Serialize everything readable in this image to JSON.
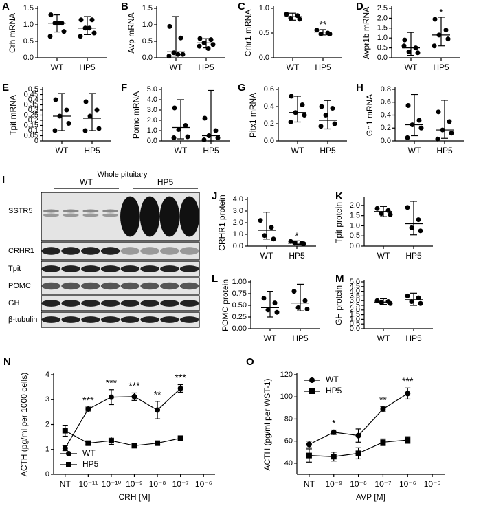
{
  "chart_data": [
    {
      "type": "dot",
      "panel": "A",
      "ylabel": "Crh mRNA",
      "color": "#000000",
      "categories": [
        "WT",
        "HP5"
      ],
      "ylim": [
        0,
        1.5
      ],
      "yticks": [
        {
          "value": 0,
          "label": "0.0"
        },
        0.5,
        {
          "value": 1,
          "label": "1.0"
        },
        1.5
      ],
      "groups": [
        {
          "values": [
            1.3,
            1.05,
            1.05,
            0.8,
            0.65,
            1.05
          ],
          "center": 1.05,
          "low": 0.78,
          "high": 1.3
        },
        {
          "values": [
            1.15,
            1.15,
            0.9,
            0.75,
            0.65,
            0.9
          ],
          "center": 0.9,
          "low": 0.7,
          "high": 1.25
        }
      ]
    },
    {
      "type": "dot",
      "panel": "B",
      "ylabel": "Avp mRNA",
      "color": "#000000",
      "categories": [
        "WT",
        "HP5"
      ],
      "ylim": [
        0,
        1.5
      ],
      "yticks": [
        {
          "value": 0,
          "label": "0.0"
        },
        0.5,
        {
          "value": 1,
          "label": "1.0"
        },
        1.5
      ],
      "groups": [
        {
          "values": [
            0.95,
            0.6,
            0.15,
            0.1,
            0.05,
            0.1
          ],
          "center": 0.18,
          "low": 0.05,
          "high": 1.25
        },
        {
          "values": [
            0.58,
            0.55,
            0.45,
            0.4,
            0.35,
            0.28
          ],
          "center": 0.45,
          "low": 0.3,
          "high": 0.58
        }
      ]
    },
    {
      "type": "dot",
      "panel": "C",
      "ylabel": "Crhr1 mRNA",
      "color": "#000000",
      "categories": [
        "WT",
        "HP5"
      ],
      "ylim": [
        0,
        1
      ],
      "yticks": [
        {
          "value": 0,
          "label": "0.0"
        },
        0.5,
        {
          "value": 1,
          "label": "1.0"
        }
      ],
      "groups": [
        {
          "values": [
            0.88,
            0.85,
            0.8,
            0.78
          ],
          "center": 0.83,
          "low": 0.76,
          "high": 0.9
        },
        {
          "values": [
            0.56,
            0.5,
            0.48,
            0.48
          ],
          "center": 0.52,
          "low": 0.46,
          "high": 0.57
        }
      ],
      "annotations": [
        null,
        "**"
      ]
    },
    {
      "type": "dot",
      "panel": "D",
      "ylabel": "Avpr1b mRNA",
      "color": "#000000",
      "categories": [
        "WT",
        "HP5"
      ],
      "ylim": [
        0,
        2.5
      ],
      "yticks": [
        {
          "value": 0,
          "label": "0.0"
        },
        0.5,
        {
          "value": 1,
          "label": "1.0"
        },
        1.5,
        {
          "value": 2,
          "label": "2.0"
        },
        2.5
      ],
      "groups": [
        {
          "values": [
            0.9,
            0.5,
            0.3,
            0.25,
            0.6
          ],
          "center": 0.5,
          "low": 0.12,
          "high": 1.28
        },
        {
          "values": [
            1.95,
            1.4,
            1.15,
            0.95,
            0.6
          ],
          "center": 1.15,
          "low": 0.6,
          "high": 2.05
        }
      ],
      "annotations": [
        null,
        "*"
      ]
    },
    {
      "type": "dot",
      "panel": "E",
      "ylabel": "Tpit mRNA",
      "color": "#000000",
      "categories": [
        "WT",
        "HP5"
      ],
      "ylim": [
        0,
        0.5
      ],
      "yticks": [
        0,
        0.05,
        0.1,
        0.15,
        0.2,
        0.25,
        0.3,
        0.35,
        0.4,
        0.45,
        0.5
      ],
      "groups": [
        {
          "values": [
            0.4,
            0.3,
            0.24,
            0.17,
            0.1
          ],
          "center": 0.24,
          "low": 0.1,
          "high": 0.46
        },
        {
          "values": [
            0.38,
            0.3,
            0.24,
            0.12,
            0.1
          ],
          "center": 0.22,
          "low": 0.1,
          "high": 0.46
        }
      ]
    },
    {
      "type": "dot",
      "panel": "F",
      "ylabel": "Pomc mRNA",
      "color": "#000000",
      "categories": [
        "WT",
        "HP5"
      ],
      "ylim": [
        0,
        5
      ],
      "yticks": [
        {
          "value": 0,
          "label": "0.0"
        },
        {
          "value": 1,
          "label": "1.0"
        },
        {
          "value": 2,
          "label": "2.0"
        },
        {
          "value": 3,
          "label": "3.0"
        },
        {
          "value": 4,
          "label": "4.0"
        },
        {
          "value": 5,
          "label": "5.0"
        }
      ],
      "groups": [
        {
          "values": [
            3.2,
            1.5,
            1.1,
            0.4,
            0.3
          ],
          "center": 1.3,
          "low": 0.2,
          "high": 4.0
        },
        {
          "values": [
            2.2,
            1.0,
            0.5,
            0.3,
            0.1
          ],
          "center": 0.5,
          "low": 0,
          "high": 4.9
        }
      ]
    },
    {
      "type": "dot",
      "panel": "G",
      "ylabel": "Pitx1 mRNA",
      "color": "#000000",
      "categories": [
        "WT",
        "HP5"
      ],
      "ylim": [
        0,
        0.6
      ],
      "yticks": [
        {
          "value": 0,
          "label": "0.0"
        },
        0.2,
        0.4,
        0.6
      ],
      "groups": [
        {
          "values": [
            0.52,
            0.42,
            0.33,
            0.3,
            0.22
          ],
          "center": 0.33,
          "low": 0.22,
          "high": 0.52
        },
        {
          "values": [
            0.4,
            0.38,
            0.3,
            0.2,
            0.17
          ],
          "center": 0.24,
          "low": 0.14,
          "high": 0.47
        }
      ]
    },
    {
      "type": "dot",
      "panel": "H",
      "ylabel": "Gh1 mRNA",
      "color": "#000000",
      "categories": [
        "WT",
        "HP5"
      ],
      "ylim": [
        0,
        0.8
      ],
      "yticks": [
        {
          "value": 0,
          "label": "0.0"
        },
        0.2,
        0.4,
        0.6,
        0.8
      ],
      "groups": [
        {
          "values": [
            0.55,
            0.32,
            0.25,
            0.2,
            0.05
          ],
          "center": 0.25,
          "low": 0.08,
          "high": 0.72
        },
        {
          "values": [
            0.45,
            0.3,
            0.17,
            0.12,
            0.03
          ],
          "center": 0.17,
          "low": 0.04,
          "high": 0.63
        }
      ]
    },
    {
      "type": "dot",
      "panel": "J",
      "ylabel": "CRHR1 protein",
      "color": "#000000",
      "categories": [
        "WT",
        "HP5"
      ],
      "ylim": [
        0,
        4
      ],
      "yticks": [
        {
          "value": 0,
          "label": "0.0"
        },
        {
          "value": 1,
          "label": "1.0"
        },
        {
          "value": 2,
          "label": "2.0"
        },
        {
          "value": 3,
          "label": "3.0"
        },
        {
          "value": 4,
          "label": "4.0"
        }
      ],
      "groups": [
        {
          "values": [
            2.2,
            1.6,
            0.9,
            0.6
          ],
          "center": 1.35,
          "low": 0.6,
          "high": 2.9
        },
        {
          "values": [
            0.4,
            0.25,
            0.25,
            0.2
          ],
          "center": 0.25,
          "low": 0.15,
          "high": 0.45
        }
      ],
      "annotations": [
        null,
        "*"
      ]
    },
    {
      "type": "dot",
      "panel": "K",
      "ylabel": "Tpit protein",
      "color": "#000000",
      "categories": [
        "WT",
        "HP5"
      ],
      "ylim": [
        0,
        2.3
      ],
      "yticks": [
        {
          "value": 0,
          "label": "0.0"
        },
        0.5,
        {
          "value": 1,
          "label": "1.0"
        },
        1.5,
        {
          "value": 2,
          "label": "2.0"
        }
      ],
      "groups": [
        {
          "values": [
            1.85,
            1.75,
            1.6,
            1.55
          ],
          "center": 1.7,
          "low": 1.45,
          "high": 1.95
        },
        {
          "values": [
            1.9,
            1.3,
            0.9,
            0.75
          ],
          "center": 1.1,
          "low": 0.55,
          "high": 2.2
        }
      ]
    },
    {
      "type": "dot",
      "panel": "L",
      "ylabel": "POMC protein",
      "color": "#000000",
      "categories": [
        "WT",
        "HP5"
      ],
      "ylim": [
        0,
        1
      ],
      "yticks": [
        {
          "value": 0,
          "label": "0.00"
        },
        0.25,
        {
          "value": 0.5,
          "label": "0.50"
        },
        0.75,
        {
          "value": 1,
          "label": "1.00"
        }
      ],
      "groups": [
        {
          "values": [
            0.65,
            0.55,
            0.4,
            0.35
          ],
          "center": 0.45,
          "low": 0.25,
          "high": 0.8
        },
        {
          "values": [
            0.8,
            0.6,
            0.45,
            0.42
          ],
          "center": 0.55,
          "low": 0.38,
          "high": 0.95
        }
      ]
    },
    {
      "type": "dot",
      "panel": "M",
      "ylabel": "GH protein",
      "color": "#000000",
      "categories": [
        "WT",
        "HP5"
      ],
      "ylim": [
        0,
        5
      ],
      "yticks": [
        {
          "value": 0,
          "label": "0.0"
        },
        0.5,
        {
          "value": 1,
          "label": "1.0"
        },
        1.5,
        {
          "value": 2,
          "label": "2.0"
        },
        2.5,
        {
          "value": 3,
          "label": "3.0"
        },
        3.5,
        {
          "value": 4,
          "label": "4.0"
        },
        4.5,
        {
          "value": 5,
          "label": "5.0"
        }
      ],
      "groups": [
        {
          "values": [
            3.0,
            2.9,
            2.8,
            2.7
          ],
          "center": 2.85,
          "low": 2.6,
          "high": 3.2
        },
        {
          "values": [
            3.5,
            3.3,
            2.9,
            2.7
          ],
          "center": 3.1,
          "low": 2.5,
          "high": 3.8
        }
      ]
    },
    {
      "type": "line",
      "panel": "N",
      "ylabel": "ACTH (pg/ml per 1000 cells)",
      "xlabel": "CRH [M]",
      "legend": "lower left",
      "categories": [
        "NT",
        "10⁻¹¹",
        "10⁻¹⁰",
        "10⁻⁹",
        "10⁻⁸",
        "10⁻⁷",
        "10⁻⁶"
      ],
      "ylim": [
        0,
        4
      ],
      "yticks": [
        0,
        1,
        2,
        3,
        4
      ],
      "series": [
        {
          "name": "WT",
          "marker": "circle",
          "color": "#000000",
          "values": [
            1.05,
            2.62,
            3.1,
            3.12,
            2.58,
            3.45,
            null
          ],
          "errors": [
            0.1,
            0.08,
            0.3,
            0.15,
            0.35,
            0.15,
            null
          ]
        },
        {
          "name": "HP5",
          "marker": "square",
          "color": "#000000",
          "values": [
            1.75,
            1.25,
            1.35,
            1.15,
            1.25,
            1.45,
            null
          ],
          "errors": [
            0.22,
            0.05,
            0.15,
            0.05,
            0.05,
            0.05,
            null
          ]
        }
      ],
      "annotations": [
        null,
        "***",
        "***",
        "***",
        "**",
        "***",
        null
      ]
    },
    {
      "type": "line",
      "panel": "O",
      "ylabel": "ACTH (pg/ml per WST-1)",
      "xlabel": "AVP [M]",
      "legend": "upper left",
      "categories": [
        "NT",
        "10⁻⁹",
        "10⁻⁸",
        "10⁻⁷",
        "10⁻⁶",
        "10⁻⁵"
      ],
      "ylim": [
        30,
        120
      ],
      "yticks": [
        40,
        60,
        80,
        100,
        120
      ],
      "series": [
        {
          "name": "WT",
          "marker": "circle",
          "color": "#000000",
          "values": [
            57,
            68,
            65,
            89,
            103,
            null
          ],
          "errors": [
            3,
            2,
            6,
            2,
            5,
            null
          ]
        },
        {
          "name": "HP5",
          "marker": "square",
          "color": "#000000",
          "values": [
            47,
            46,
            49,
            59,
            61,
            null
          ],
          "errors": [
            6,
            4,
            5,
            3,
            3,
            null
          ]
        }
      ],
      "annotations": [
        null,
        "*",
        null,
        "**",
        "***",
        null
      ]
    }
  ],
  "blot": {
    "panel": "I",
    "title": "Whole pituitary",
    "groups": [
      "WT",
      "HP5"
    ],
    "rows": [
      "SSTR5",
      "CRHR1",
      "Tpit",
      "POMC",
      "GH",
      "β-tubulin"
    ]
  }
}
